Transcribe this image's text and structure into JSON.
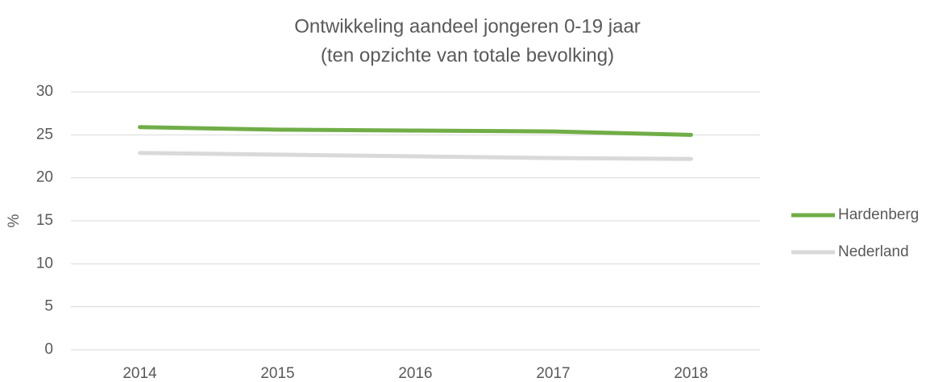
{
  "chart_data": {
    "type": "line",
    "title": "Ontwikkeling aandeel jongeren 0-19 jaar",
    "subtitle": "(ten opzichte van totale bevolking)",
    "y_label": "%",
    "categories": [
      "2014",
      "2015",
      "2016",
      "2017",
      "2018"
    ],
    "series": [
      {
        "name": "Hardenberg",
        "color": "#70ad47",
        "values": [
          25.9,
          25.6,
          25.5,
          25.4,
          25.0
        ]
      },
      {
        "name": "Nederland",
        "color": "#d9d9d9",
        "values": [
          22.9,
          22.7,
          22.5,
          22.3,
          22.2
        ]
      }
    ],
    "ylim": [
      0,
      30
    ],
    "yticks": [
      0,
      5,
      10,
      15,
      20,
      25,
      30
    ],
    "grid": true,
    "legend": "right"
  }
}
